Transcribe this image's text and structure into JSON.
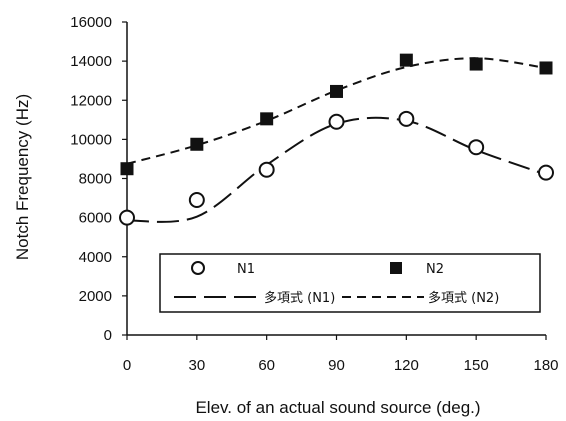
{
  "chart_data": {
    "type": "scatter",
    "title": "",
    "xlabel": "Elev. of an actual sound source (deg.)",
    "ylabel": "Notch Frequency (Hz)",
    "xlim": [
      0,
      180
    ],
    "ylim": [
      0,
      16000
    ],
    "x_ticks": [
      0,
      30,
      60,
      90,
      120,
      150,
      180
    ],
    "y_ticks": [
      0,
      2000,
      4000,
      6000,
      8000,
      10000,
      12000,
      14000,
      16000
    ],
    "x_tick_labels": [
      "0",
      "30",
      "60",
      "90",
      "120",
      "150",
      "180"
    ],
    "y_tick_labels": [
      "0",
      "2000",
      "4000",
      "6000",
      "8000",
      "10000",
      "12000",
      "14000",
      "16000"
    ],
    "grid": false,
    "legend_position": "bottom-center",
    "x": [
      0,
      30,
      60,
      90,
      120,
      150,
      180
    ],
    "series": [
      {
        "name": "N1",
        "marker": "open-circle",
        "values": [
          6000,
          6900,
          8450,
          10900,
          11050,
          9600,
          8300
        ]
      },
      {
        "name": "N2",
        "marker": "filled-square",
        "values": [
          8500,
          9750,
          11050,
          12450,
          14050,
          13850,
          13650
        ]
      }
    ],
    "trendlines": [
      {
        "name": "多項式 (N1)",
        "style": "long-dash",
        "values": [
          5850,
          6050,
          8700,
          10800,
          10950,
          9450,
          8200
        ]
      },
      {
        "name": "多項式 (N2)",
        "style": "short-dash",
        "values": [
          8750,
          9700,
          10950,
          12500,
          13700,
          14150,
          13650
        ]
      }
    ]
  },
  "colors": {
    "ink": "#111111",
    "background": "#ffffff"
  }
}
